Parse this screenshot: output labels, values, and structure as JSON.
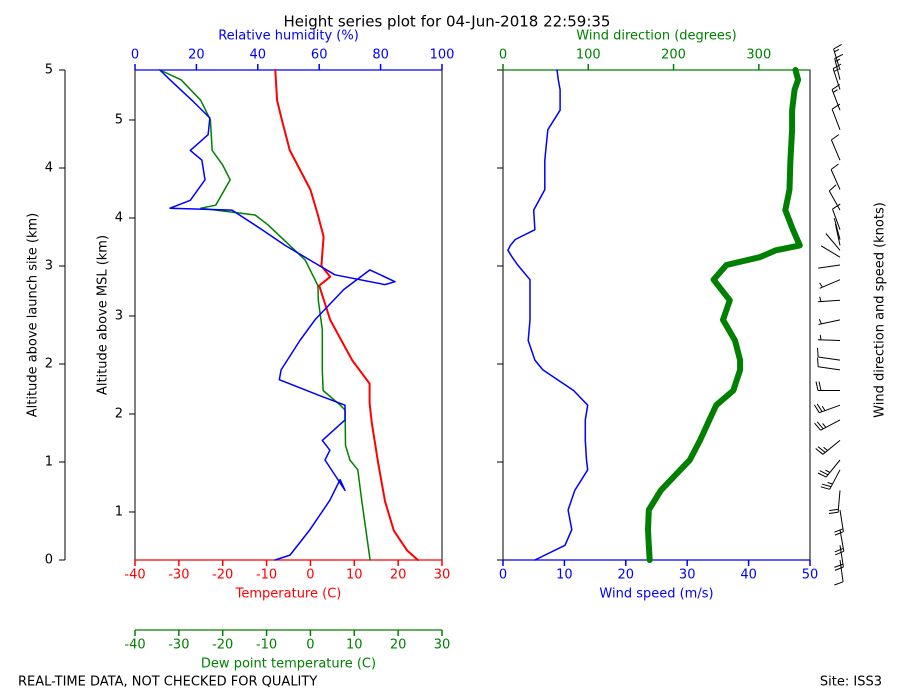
{
  "title": "Height series plot for 04-Jun-2018 22:59:35",
  "footer_left": "REAL-TIME DATA, NOT CHECKED FOR QUALITY",
  "footer_right": "Site: ISS3",
  "chart_data": [
    {
      "type": "line",
      "yaxes": [
        {
          "label": "Altitude above launch site (km)",
          "lim": [
            0,
            5
          ],
          "ticks": [
            0,
            1,
            2,
            3,
            4,
            5
          ],
          "side": "left",
          "color": "#000000"
        },
        {
          "label": "Altitude above MSL (km)",
          "lim": [
            0.51,
            5.51
          ],
          "ticks": [
            1,
            2,
            3,
            4,
            5
          ],
          "side": "left",
          "color": "#000000"
        }
      ],
      "xaxes": [
        {
          "label": "Temperature (C)",
          "lim": [
            -40,
            30
          ],
          "ticks": [
            -40,
            -30,
            -20,
            -10,
            0,
            10,
            20,
            30
          ],
          "side": "bottom",
          "color": "#ff0000"
        },
        {
          "label": "Relative humidity (%)",
          "lim": [
            0,
            100
          ],
          "ticks": [
            0,
            20,
            40,
            60,
            80,
            100
          ],
          "side": "top",
          "color": "#0000ff"
        },
        {
          "label": "Dew point temperature (C)",
          "lim": [
            -40,
            30
          ],
          "ticks": [
            -40,
            -30,
            -20,
            -10,
            0,
            10,
            20,
            30
          ],
          "side": "bottom",
          "color": "#008000"
        }
      ],
      "series": [
        {
          "color": "#ff0000",
          "axis": 0,
          "linewidth": 2,
          "altitude": [
            0,
            0.1,
            0.3,
            0.6,
            1.0,
            1.4,
            1.6,
            1.8,
            2.04,
            2.45,
            2.8,
            2.89,
            3.0,
            3.3,
            3.52,
            3.78,
            4.18,
            4.49,
            4.69,
            5.0
          ],
          "values": [
            24.5,
            22,
            19,
            17,
            15.4,
            14,
            13.5,
            13.5,
            9.5,
            4.5,
            2,
            4.5,
            2.5,
            3,
            1.7,
            0,
            -4.7,
            -6.5,
            -7.6,
            -8
          ]
        },
        {
          "color": "#008000",
          "axis": 2,
          "linewidth": 1.5,
          "altitude": [
            0,
            0.61,
            0.92,
            1.02,
            1.17,
            1.53,
            1.58,
            1.73,
            1.94,
            2.35,
            2.65,
            2.8,
            3.06,
            3.21,
            3.42,
            3.52,
            3.59,
            3.62,
            3.88,
            4.03,
            4.18,
            4.49,
            4.69,
            4.9,
            5.0
          ],
          "values": [
            13.6,
            11.7,
            10.8,
            9,
            8,
            7.9,
            6.8,
            2.9,
            2.7,
            2.7,
            1.8,
            1.7,
            -1.2,
            -4.7,
            -9.7,
            -12.6,
            -25,
            -21.6,
            -18.3,
            -20,
            -22.4,
            -22.8,
            -25,
            -29.5,
            -34.3
          ]
        },
        {
          "color": "#0000ff",
          "axis": 1,
          "linewidth": 1.5,
          "altitude": [
            0,
            0.05,
            0.31,
            0.61,
            0.82,
            0.71,
            1.02,
            1.12,
            1.22,
            1.43,
            1.58,
            1.68,
            1.84,
            1.94,
            2.24,
            2.45,
            2.76,
            2.96,
            2.84,
            2.81,
            2.91,
            3.06,
            3.21,
            3.37,
            3.57,
            3.59,
            3.67,
            3.88,
            4.08,
            4.18,
            4.34,
            4.51,
            4.69,
            4.9,
            5.0
          ],
          "values": [
            45.6,
            50.5,
            57,
            63.5,
            66.8,
            68.4,
            61.9,
            63.5,
            61,
            68.4,
            68.4,
            60,
            47,
            47.6,
            53.7,
            58.6,
            68,
            76.5,
            84.7,
            81.4,
            65.1,
            57,
            48.9,
            41.4,
            31.6,
            11.4,
            18,
            22.8,
            21.8,
            18,
            23.8,
            24.4,
            18.6,
            11.4,
            8.1
          ]
        }
      ]
    },
    {
      "type": "line",
      "yaxes": [
        {
          "lim": [
            0,
            5
          ],
          "ticks": [
            0,
            1,
            2,
            3,
            4,
            5
          ],
          "side": "left",
          "color": "#000000",
          "show_labels": false
        }
      ],
      "xaxes": [
        {
          "label": "Wind speed (m/s)",
          "lim": [
            0,
            50
          ],
          "ticks": [
            0,
            10,
            20,
            30,
            40,
            50
          ],
          "side": "bottom",
          "color": "#0000ff"
        },
        {
          "label": "Wind direction (degrees)",
          "lim": [
            0,
            360
          ],
          "ticks": [
            0,
            100,
            200,
            300
          ],
          "side": "top",
          "color": "#008000"
        }
      ],
      "right_label": "Wind direction and speed (knots)",
      "barbs": true,
      "altitude": [
        0,
        0.15,
        0.31,
        0.51,
        0.71,
        0.92,
        1.02,
        1.22,
        1.43,
        1.58,
        1.73,
        1.94,
        2.04,
        2.24,
        2.45,
        2.65,
        2.86,
        3.01,
        3.09,
        3.16,
        3.21,
        3.27,
        3.37,
        3.57,
        3.78,
        4.08,
        4.39,
        4.59,
        4.8,
        4.9,
        5.0
      ],
      "series": [
        {
          "color": "#0000ff",
          "axis": 0,
          "linewidth": 1.5,
          "values": [
            5.2,
            10.1,
            11.2,
            10.6,
            11.7,
            13.8,
            13.6,
            13.4,
            13.4,
            13.8,
            11.5,
            6.5,
            5.2,
            4.1,
            4.4,
            4.4,
            4.4,
            2.4,
            1.5,
            0.8,
            1.2,
            2,
            5.2,
            5,
            6.8,
            6.8,
            7.3,
            9.3,
            9.3,
            9,
            8.8
          ]
        },
        {
          "color": "#008000",
          "axis": 1,
          "linewidth": 6,
          "values": [
            172,
            171,
            170,
            171,
            185,
            208,
            219,
            231,
            242,
            250,
            270,
            278,
            278,
            272,
            258,
            266,
            247,
            262,
            301,
            320,
            348,
            345,
            340,
            331,
            336,
            337,
            339,
            339,
            342,
            346,
            343
          ]
        }
      ]
    }
  ]
}
